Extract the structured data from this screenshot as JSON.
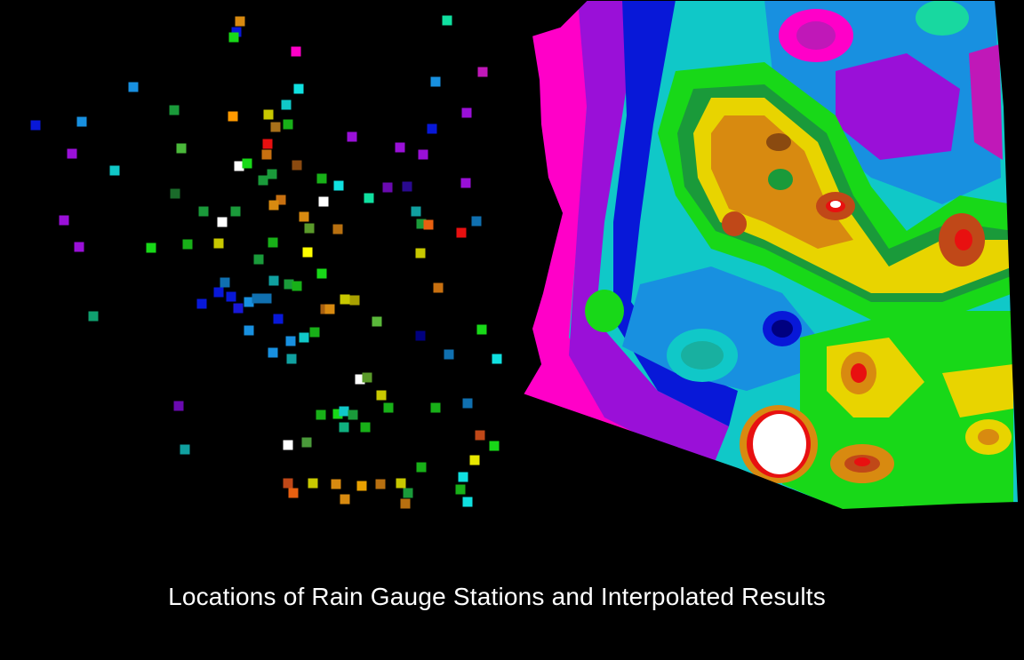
{
  "caption": "Locations of Rain Gauge Stations and Interpolated Results",
  "colors": {
    "background": "#000000",
    "caption": "#ffffff"
  },
  "panels": {
    "left": "rain-gauge-stations",
    "right": "interpolated-rainfall-surface"
  },
  "color_ramp": [
    "#ffffff",
    "#e81010",
    "#c04818",
    "#d88a10",
    "#e8d400",
    "#b8e000",
    "#18d818",
    "#1a9a3a",
    "#10c8c8",
    "#1890e0",
    "#0818d8",
    "#6a0ab0",
    "#c018b8",
    "#ff00c8"
  ]
}
